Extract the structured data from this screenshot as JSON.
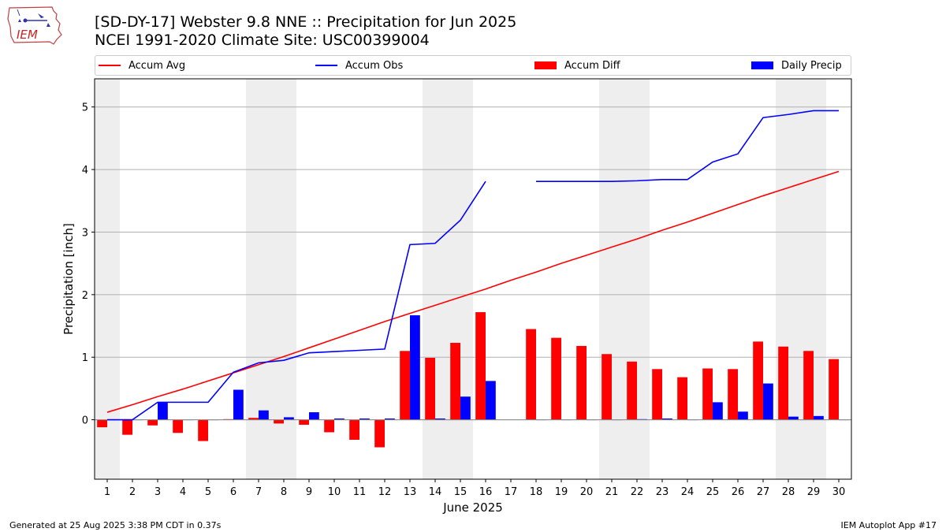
{
  "header": {
    "title_line1": "[SD-DY-17] Webster 9.8 NNE :: Precipitation for Jun 2025",
    "title_line2": "NCEI 1991-2020 Climate Site: USC00399004"
  },
  "logo": {
    "text": "IEM",
    "icon": "iem-iowa-logo"
  },
  "footer": {
    "left": "Generated at 25 Aug 2025 3:38 PM CDT in 0.37s",
    "right": "IEM Autoplot App #17"
  },
  "colors": {
    "accum_avg": "#ff0000",
    "accum_obs": "#0000ff",
    "accum_diff": "#ff0000",
    "daily_precip": "#0000ff",
    "weekend_shade": "#eeeeee",
    "grid": "#b0b0b0"
  },
  "chart_data": {
    "type": "bar",
    "xlabel": "June 2025",
    "ylabel": "Precipitation [inch]",
    "ylim": [
      -0.95,
      5.45
    ],
    "yticks": [
      0,
      1,
      2,
      3,
      4,
      5
    ],
    "grid": "horizontal",
    "legend_position": "top",
    "x": [
      1,
      2,
      3,
      4,
      5,
      6,
      7,
      8,
      9,
      10,
      11,
      12,
      13,
      14,
      15,
      16,
      17,
      18,
      19,
      20,
      21,
      22,
      23,
      24,
      25,
      26,
      27,
      28,
      29,
      30
    ],
    "xtick_labels": [
      "1",
      "2",
      "3",
      "4",
      "5",
      "6",
      "7",
      "8",
      "9",
      "10",
      "11",
      "12",
      "13",
      "14",
      "15",
      "16",
      "17",
      "18",
      "19",
      "20",
      "21",
      "22",
      "23",
      "24",
      "25",
      "26",
      "27",
      "28",
      "29",
      "30"
    ],
    "shaded_weekend_days": [
      [
        1,
        1
      ],
      [
        7,
        8
      ],
      [
        14,
        15
      ],
      [
        21,
        22
      ],
      [
        28,
        29
      ]
    ],
    "series": [
      {
        "name": "Accum Avg",
        "type": "line",
        "values": [
          0.12,
          0.24,
          0.37,
          0.49,
          0.62,
          0.75,
          0.88,
          1.01,
          1.15,
          1.29,
          1.43,
          1.57,
          1.7,
          1.83,
          1.96,
          2.09,
          2.23,
          2.36,
          2.5,
          2.63,
          2.76,
          2.89,
          3.03,
          3.16,
          3.3,
          3.44,
          3.58,
          3.71,
          3.84,
          3.97
        ]
      },
      {
        "name": "Accum Obs",
        "type": "line",
        "values": [
          0.0,
          0.0,
          0.28,
          0.28,
          0.28,
          0.76,
          0.91,
          0.95,
          1.07,
          1.09,
          1.11,
          1.13,
          2.8,
          2.82,
          3.19,
          3.81,
          null,
          3.81,
          3.81,
          3.81,
          3.81,
          3.82,
          3.84,
          3.84,
          4.12,
          4.25,
          4.83,
          4.88,
          4.94,
          4.94
        ]
      },
      {
        "name": "Accum Diff",
        "type": "bar",
        "values": [
          -0.12,
          -0.24,
          -0.09,
          -0.21,
          -0.34,
          0.01,
          0.03,
          -0.06,
          -0.08,
          -0.2,
          -0.32,
          -0.44,
          1.1,
          0.99,
          1.23,
          1.72,
          null,
          1.45,
          1.31,
          1.18,
          1.05,
          0.93,
          0.81,
          0.68,
          0.82,
          0.81,
          1.25,
          1.17,
          1.1,
          0.97
        ]
      },
      {
        "name": "Daily Precip",
        "type": "bar",
        "values": [
          0.0,
          0.0,
          0.28,
          0.0,
          0.0,
          0.48,
          0.15,
          0.04,
          0.12,
          0.02,
          0.02,
          0.02,
          1.67,
          0.02,
          0.37,
          0.62,
          null,
          0.0,
          0.0,
          0.0,
          0.0,
          0.01,
          0.02,
          0.0,
          0.28,
          0.13,
          0.58,
          0.05,
          0.06,
          0.0
        ]
      }
    ]
  }
}
